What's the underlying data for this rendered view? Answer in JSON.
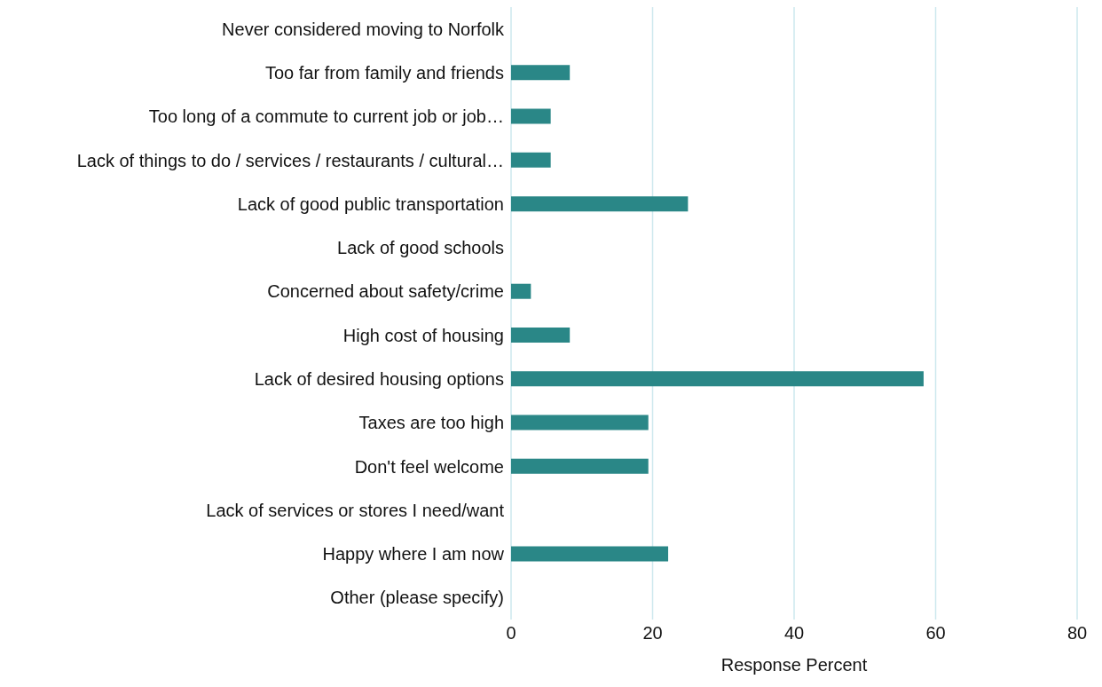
{
  "chart_data": {
    "type": "bar",
    "orientation": "horizontal",
    "xlabel": "Response Percent",
    "categories": [
      "Never considered moving to Norfolk",
      "Too far from family and friends",
      "Too long of a commute to current job or job…",
      "Lack of things to do / services / restaurants / cultural…",
      "Lack of good public transportation",
      "Lack of good schools",
      "Concerned about safety/crime",
      "High cost of housing",
      "Lack of desired housing options",
      "Taxes are too high",
      "Don't feel welcome",
      "Lack of services or stores I need/want",
      "Happy where I am now",
      "Other (please specify)"
    ],
    "values": [
      0,
      8.3,
      5.6,
      5.6,
      25,
      0,
      2.8,
      8.3,
      58.3,
      19.4,
      19.4,
      0,
      22.2,
      0
    ],
    "color": "#2a8787",
    "xlim": [
      0,
      80
    ],
    "xticks": [
      0,
      20,
      40,
      60,
      80
    ],
    "grid": "x"
  }
}
